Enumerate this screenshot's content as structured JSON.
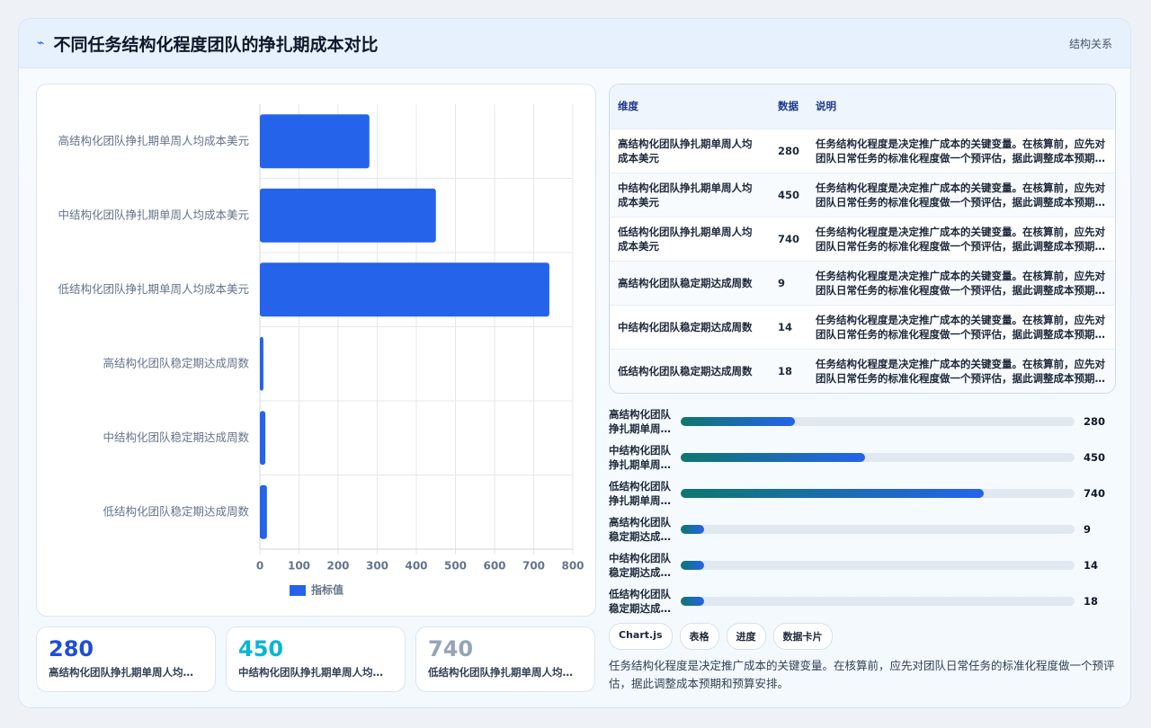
{
  "header": {
    "title": "不同任务结构化程度团队的挣扎期成本对比",
    "tag": "结构关系"
  },
  "chart_data": {
    "type": "bar",
    "orientation": "horizontal",
    "categories": [
      "高结构化团队挣扎期单周人均成本美元",
      "中结构化团队挣扎期单周人均成本美元",
      "低结构化团队挣扎期单周人均成本美元",
      "高结构化团队稳定期达成周数",
      "中结构化团队稳定期达成周数",
      "低结构化团队稳定期达成周数"
    ],
    "series": [
      {
        "name": "指标值",
        "color": "#2563eb",
        "values": [
          280,
          450,
          740,
          9,
          14,
          18
        ]
      }
    ],
    "xlim": [
      0,
      800
    ],
    "xticks": [
      0,
      100,
      200,
      300,
      400,
      500,
      600,
      700,
      800
    ],
    "grid": true,
    "legend": "bottom"
  },
  "table": {
    "columns": [
      "维度",
      "数据",
      "说明"
    ]
  },
  "tags": [
    "Chart.js",
    "表格",
    "进度",
    "数据卡片"
  ],
  "description": "任务结构化程度是决定推广成本的关键变量。在核算前，应先对团队日常任务的标准化程度做一个预评估，据此调整成本预期和预算安排。"
}
